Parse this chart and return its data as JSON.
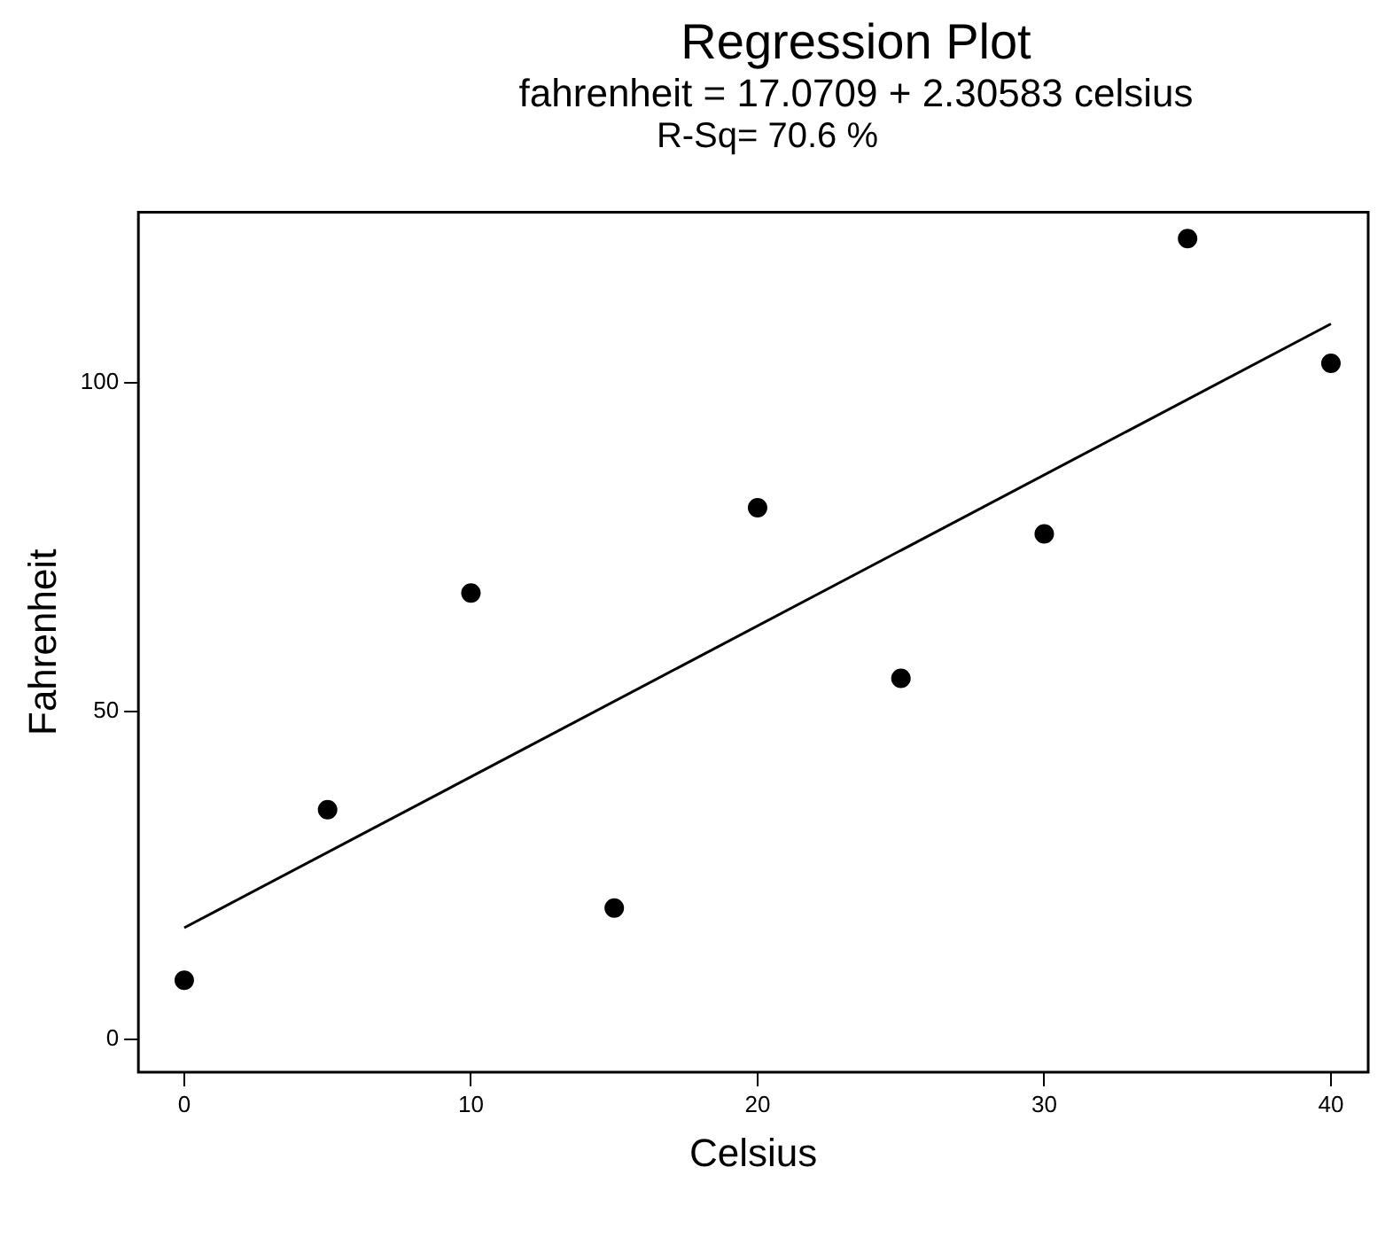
{
  "chart_data": {
    "type": "scatter",
    "title": "Regression Plot",
    "subtitle": "fahrenheit = 17.0709 + 2.30583 celsius",
    "annotations": [
      "R-Sq= 70.6 %"
    ],
    "xlabel": "Celsius",
    "ylabel": "Fahrenheit",
    "x": [
      0,
      5,
      10,
      15,
      20,
      25,
      30,
      35,
      40
    ],
    "series": [
      {
        "type": "scatter",
        "marker": "circle",
        "color": "#000000",
        "values": [
          9,
          35,
          68,
          20,
          81,
          55,
          77,
          122,
          103
        ]
      },
      {
        "type": "line",
        "marker": "none",
        "color": "#000000",
        "x": [
          0,
          40
        ],
        "values": [
          17,
          109
        ]
      }
    ],
    "xlim": [
      -1.6,
      41.3
    ],
    "xticks": [
      0,
      10,
      20,
      30,
      40
    ],
    "ylim": [
      -5,
      126
    ],
    "yticks": [
      0,
      50,
      100
    ]
  }
}
